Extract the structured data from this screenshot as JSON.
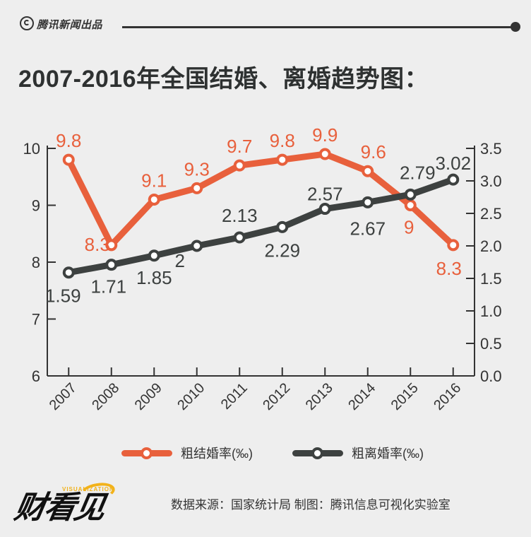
{
  "header": {
    "brand": "腾讯新闻出品"
  },
  "title": "2007-2016年全国结婚、离婚趋势图：",
  "chart_data": {
    "type": "line",
    "categories": [
      "2007",
      "2008",
      "2009",
      "2010",
      "2011",
      "2012",
      "2013",
      "2014",
      "2015",
      "2016"
    ],
    "series": [
      {
        "name": "粗结婚率(‰)",
        "axis": "left",
        "color": "#e8603c",
        "values": [
          9.8,
          8.3,
          9.1,
          9.3,
          9.7,
          9.8,
          9.9,
          9.6,
          9,
          8.3
        ],
        "labels": [
          "9.8",
          "8.3",
          "9.1",
          "9.3",
          "9.7",
          "9.8",
          "9.9",
          "9.6",
          "9",
          "8.3"
        ]
      },
      {
        "name": "粗离婚率(‰)",
        "axis": "right",
        "color": "#3d4140",
        "values": [
          1.59,
          1.71,
          1.85,
          2,
          2.13,
          2.29,
          2.57,
          2.67,
          2.79,
          3.02
        ],
        "labels": [
          "1.59",
          "1.71",
          "1.85",
          "2",
          "2.13",
          "2.29",
          "2.57",
          "2.67",
          "2.79",
          "3.02"
        ]
      }
    ],
    "ylim_left": [
      6,
      10
    ],
    "yticks_left": [
      "6",
      "7",
      "8",
      "9",
      "10"
    ],
    "ylim_right": [
      0,
      3.5
    ],
    "yticks_right": [
      "0.0",
      "0.5",
      "1.0",
      "1.5",
      "2.0",
      "2.5",
      "3.0",
      "3.5"
    ],
    "grid": false,
    "legend_position": "bottom"
  },
  "legend": {
    "marriage": "粗结婚率(‰)",
    "divorce": "粗离婚率(‰)"
  },
  "colors": {
    "marriage": "#e8603c",
    "divorce": "#3d4140",
    "text": "#333333"
  },
  "logo": {
    "text": "财看见",
    "sub": "VISUALIZATION"
  },
  "source": "数据来源：国家统计局 制图：腾讯信息可视化实验室"
}
